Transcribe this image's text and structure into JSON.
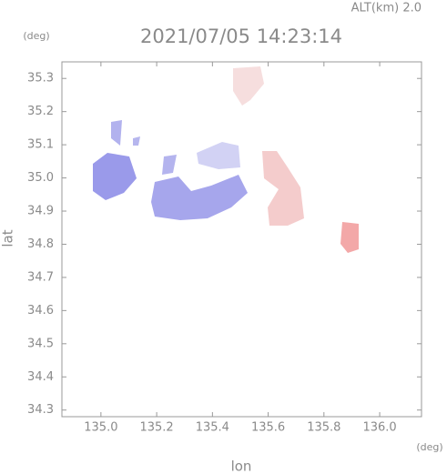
{
  "chart_data": {
    "type": "map",
    "title": "2021/07/05 14:23:14",
    "subtitle": "ALT(km) 2.0",
    "y_unit": "(deg)",
    "x_unit": "(deg)",
    "ylabel": "lat",
    "xlabel": "lon",
    "xlim": [
      134.86,
      136.15
    ],
    "ylim": [
      34.28,
      35.35
    ],
    "xticks": [
      {
        "value": 135,
        "label": "135.0"
      },
      135.2,
      135.4,
      135.6,
      135.8,
      {
        "value": 136,
        "label": "136.0"
      }
    ],
    "yticks": [
      34.3,
      34.4,
      34.5,
      34.6,
      34.7,
      34.8,
      34.9,
      {
        "value": 35,
        "label": "35.0"
      },
      35.1,
      35.2,
      35.3
    ]
  }
}
